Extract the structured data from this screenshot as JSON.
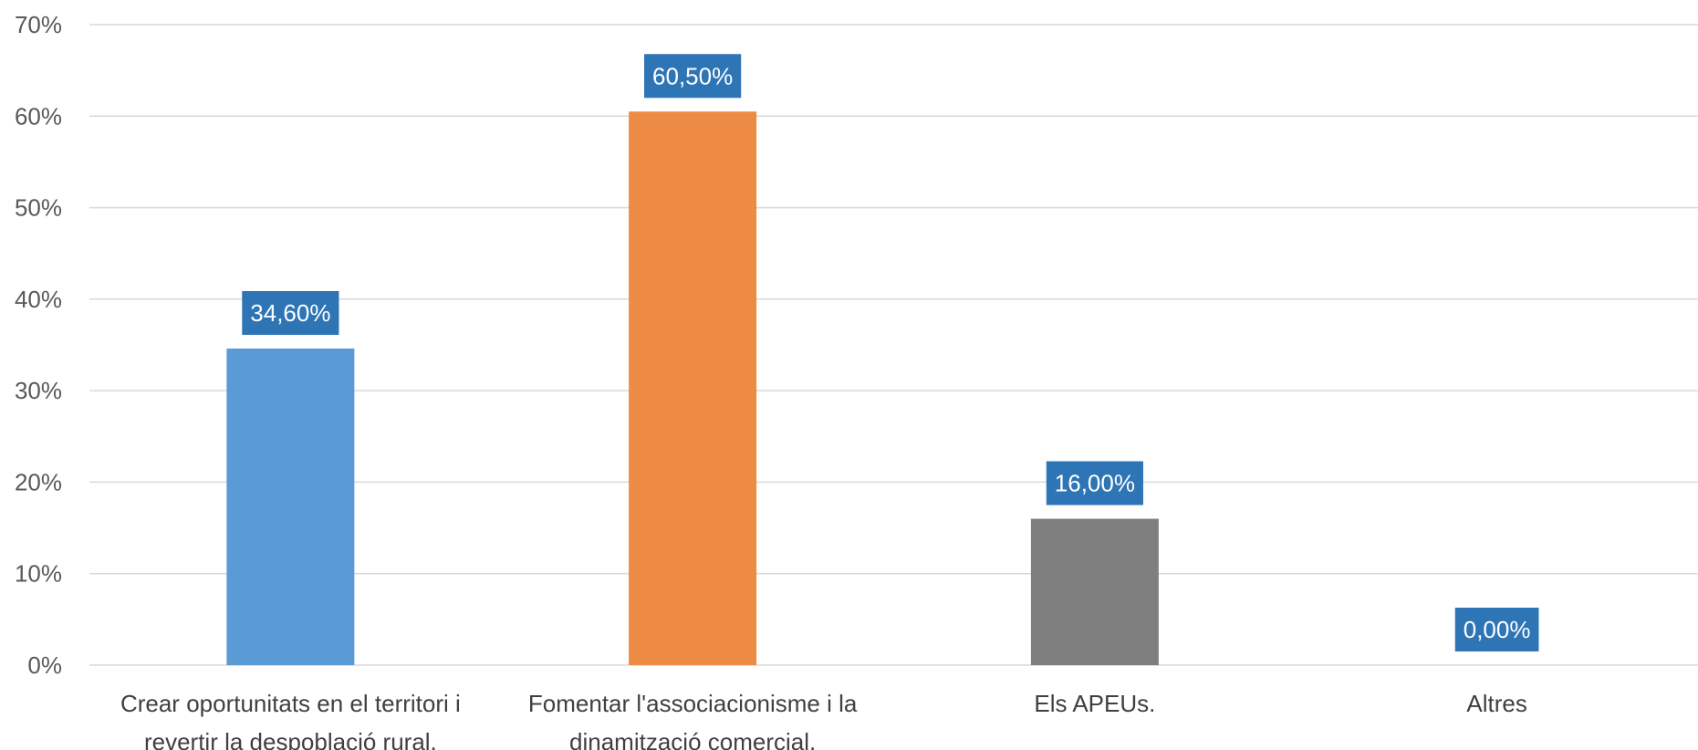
{
  "chart_data": {
    "type": "bar",
    "title": "",
    "xlabel": "",
    "ylabel": "",
    "ylim": [
      0,
      70
    ],
    "ytick_step": 10,
    "ytick_labels": [
      "0%",
      "10%",
      "20%",
      "30%",
      "40%",
      "50%",
      "60%",
      "70%"
    ],
    "grid": true,
    "legend": "none",
    "categories": [
      [
        "Crear oportunitats en el territori i",
        "revertir la despoblació rural."
      ],
      [
        "Fomentar l'associacionisme i la",
        "dinamització comercial."
      ],
      [
        "Els APEUs."
      ],
      [
        "Altres"
      ]
    ],
    "values": [
      34.6,
      60.5,
      16.0,
      0.0
    ],
    "data_labels": [
      "34,60%",
      "60,50%",
      "16,00%",
      "0,00%"
    ],
    "bar_colors": [
      "#5b9bd5",
      "#ed8b45",
      "#7f7f7f",
      "#5b9bd5"
    ],
    "data_label_bg": "#2e75b6"
  }
}
